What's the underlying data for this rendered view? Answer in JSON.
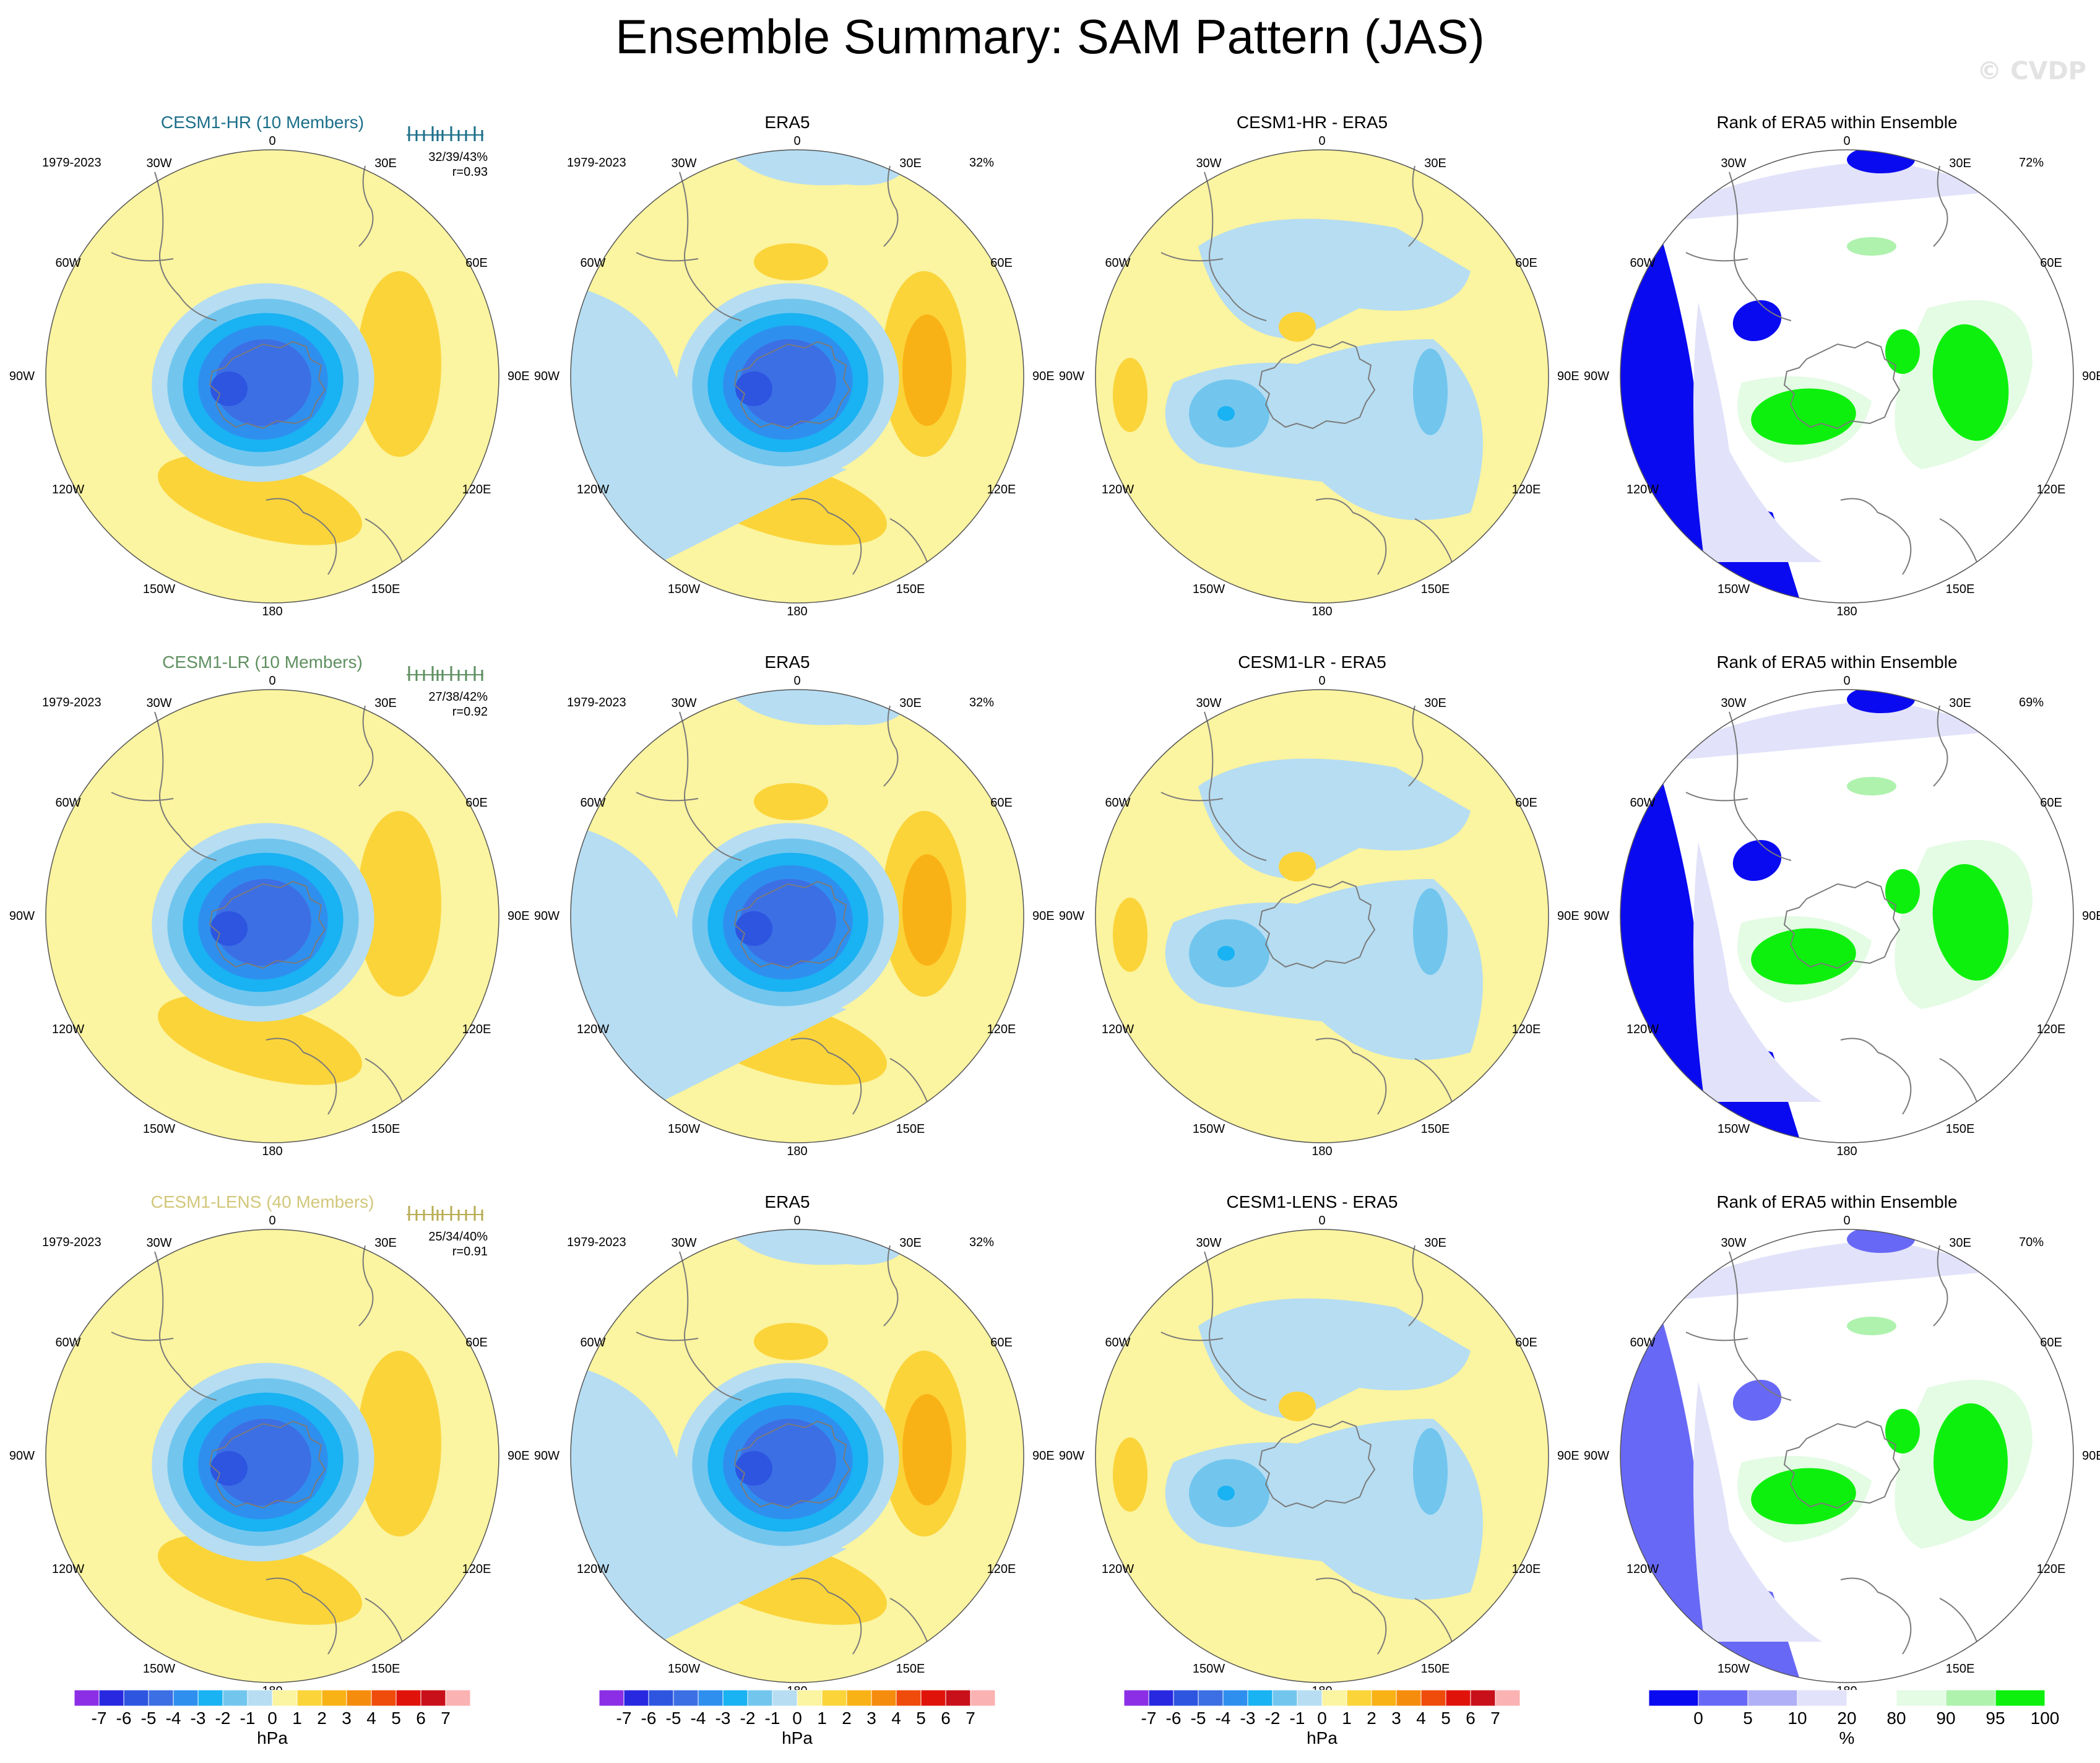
{
  "title": "Ensemble Summary: SAM Pattern (JAS)",
  "watermark": "© CVDP",
  "lon_labels": {
    "0": "0",
    "30e": "30E",
    "60e": "60E",
    "90e": "90E",
    "120e": "120E",
    "150e": "150E",
    "180": "180",
    "150w": "150W",
    "120w": "120W",
    "90w": "90W",
    "60w": "60W",
    "30w": "30W"
  },
  "rows": [
    {
      "model": {
        "title": "CESM1-HR (10 Members)",
        "title_color": "#1c6f8a",
        "period": "1979-2023",
        "stats_line1": "32/39/43%",
        "stats_line2": "r=0.93",
        "tick_color": "#1c6f8a"
      },
      "obs": {
        "title": "ERA5",
        "period": "1979-2023",
        "pct": "32%"
      },
      "diff": {
        "title": "CESM1-HR - ERA5"
      },
      "rank": {
        "title": "Rank of ERA5 within Ensemble",
        "pct": "72%"
      }
    },
    {
      "model": {
        "title": "CESM1-LR (10 Members)",
        "title_color": "#5f9060",
        "period": "1979-2023",
        "stats_line1": "27/38/42%",
        "stats_line2": "r=0.92",
        "tick_color": "#5f9060"
      },
      "obs": {
        "title": "ERA5",
        "period": "1979-2023",
        "pct": "32%"
      },
      "diff": {
        "title": "CESM1-LR - ERA5"
      },
      "rank": {
        "title": "Rank of ERA5 within Ensemble",
        "pct": "69%"
      }
    },
    {
      "model": {
        "title": "CESM1-LENS (40 Members)",
        "title_color": "#d2c77a",
        "period": "1979-2023",
        "stats_line1": "25/34/40%",
        "stats_line2": "r=0.91",
        "tick_color": "#b9ad55"
      },
      "obs": {
        "title": "ERA5",
        "period": "1979-2023",
        "pct": "32%"
      },
      "diff": {
        "title": "CESM1-LENS - ERA5"
      },
      "rank": {
        "title": "Rank of ERA5 within Ensemble",
        "pct": "70%"
      }
    }
  ],
  "chart_data": {
    "type": "heatmap",
    "projection": "south-polar stereographic",
    "field": "SAM sea-level-pressure pattern",
    "units": "hPa",
    "colorbar_hpa": {
      "labels": [
        "-7",
        "-6",
        "-5",
        "-4",
        "-3",
        "-2",
        "-1",
        "0",
        "1",
        "2",
        "3",
        "4",
        "5",
        "6",
        "7"
      ],
      "unit_label": "hPa",
      "colors": [
        "#8b2ee6",
        "#2828e0",
        "#2d55e0",
        "#3d6fe4",
        "#2f8fef",
        "#19b2f2",
        "#72c6ee",
        "#b6ddf2",
        "#fbf4a0",
        "#fbd43a",
        "#f9b216",
        "#f68c0d",
        "#ef4b0b",
        "#e0130b",
        "#c8101a",
        "#fbb2b2"
      ]
    },
    "colorbar_rank": {
      "labels": [
        "0",
        "5",
        "10",
        "20",
        "80",
        "90",
        "95",
        "100"
      ],
      "unit_label": "%",
      "colors": [
        "#0a0af0",
        "#6868f6",
        "#b0b0f6",
        "#e2e2fa",
        "#ffffff",
        "#e4fbe4",
        "#aef2ae",
        "#0df00d"
      ]
    },
    "colorbar_hpa_title": "hPa",
    "colorbar_rank_title": "%"
  }
}
